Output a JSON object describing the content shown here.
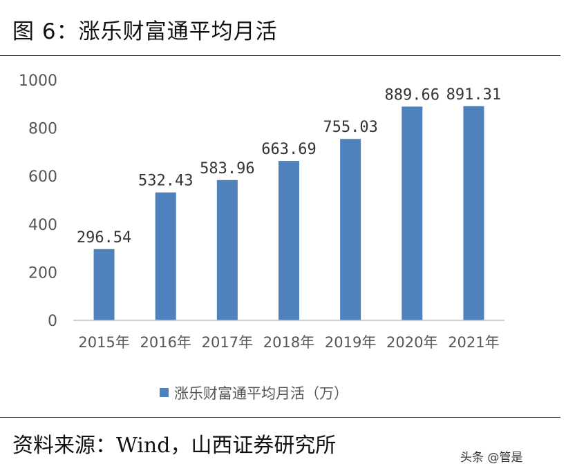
{
  "figure": {
    "title": "图 6：涨乐财富通平均月活",
    "source": "资料来源：Wind，山西证券研究所",
    "watermark": "头条 @管是"
  },
  "chart_data": {
    "type": "bar",
    "title": "",
    "xlabel": "",
    "ylabel": "",
    "categories": [
      "2015年",
      "2016年",
      "2017年",
      "2018年",
      "2019年",
      "2020年",
      "2021年"
    ],
    "series": [
      {
        "name": "涨乐财富通平均月活（万）",
        "values": [
          296.54,
          532.43,
          583.96,
          663.69,
          755.03,
          889.66,
          891.31
        ],
        "color": "#4F81BD"
      }
    ],
    "data_labels": [
      "296.54",
      "532.43",
      "583.96",
      "663.69",
      "755.03",
      "889.66",
      "891.31"
    ],
    "ylim": [
      0,
      1000
    ],
    "yticks": [
      0,
      200,
      400,
      600,
      800,
      1000
    ],
    "grid": false,
    "legend_position": "bottom"
  }
}
